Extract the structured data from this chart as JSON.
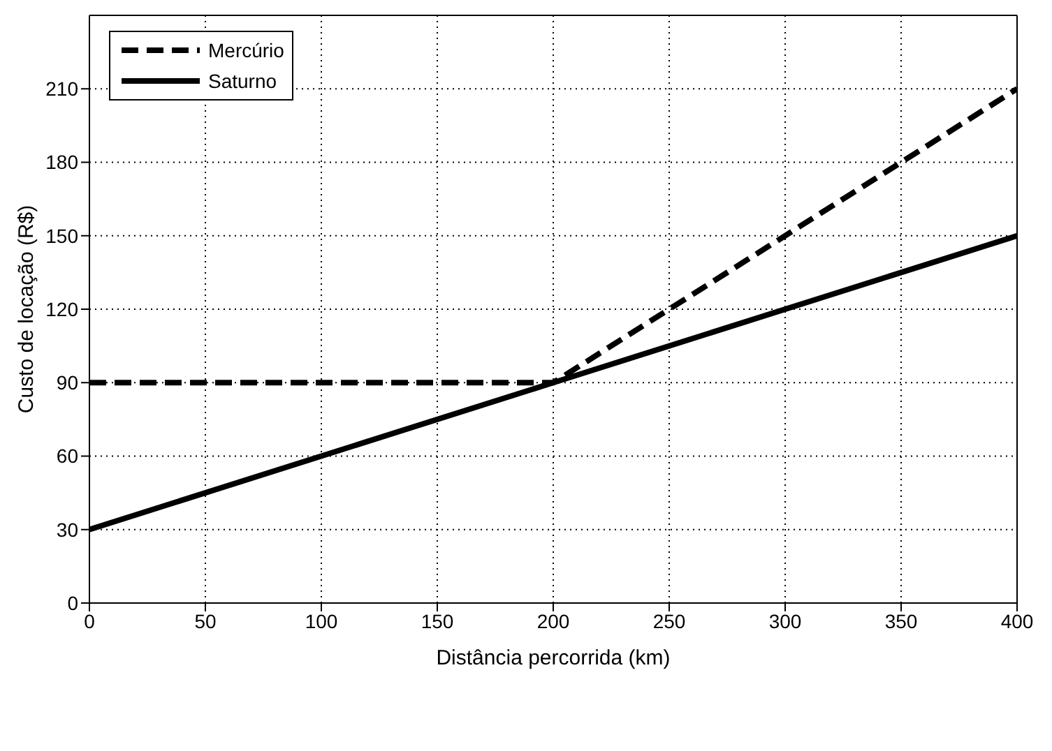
{
  "chart_data": {
    "type": "line",
    "xlabel": "Distância percorrida (km)",
    "ylabel": "Custo de locação (R$)",
    "x": [
      0,
      200,
      400
    ],
    "series": [
      {
        "name": "Mercúrio",
        "color": "#000000",
        "line_style": "dashed",
        "values": [
          90,
          90,
          210
        ]
      },
      {
        "name": "Saturno",
        "color": "#000000",
        "line_style": "solid",
        "values": [
          30,
          90,
          150
        ]
      }
    ],
    "xlim": [
      0,
      400
    ],
    "xticks": [
      0,
      50,
      100,
      150,
      200,
      250,
      300,
      350,
      400
    ],
    "ylim": [
      0,
      240
    ],
    "yticks": [
      0,
      30,
      60,
      90,
      120,
      150,
      180,
      210
    ],
    "grid": true,
    "legend": "top left"
  }
}
